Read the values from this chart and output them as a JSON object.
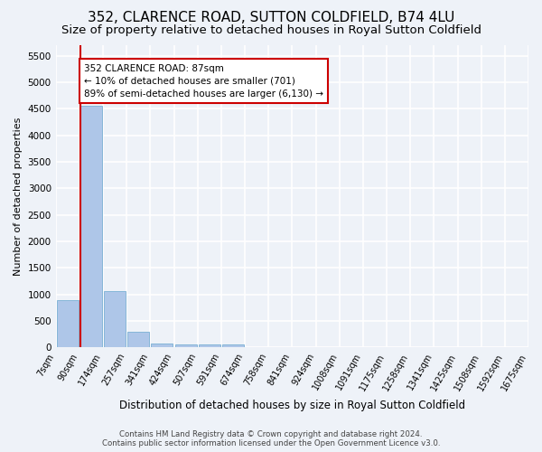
{
  "title": "352, CLARENCE ROAD, SUTTON COLDFIELD, B74 4LU",
  "subtitle": "Size of property relative to detached houses in Royal Sutton Coldfield",
  "xlabel": "Distribution of detached houses by size in Royal Sutton Coldfield",
  "ylabel": "Number of detached properties",
  "footer_line1": "Contains HM Land Registry data © Crown copyright and database right 2024.",
  "footer_line2": "Contains public sector information licensed under the Open Government Licence v3.0.",
  "tick_labels": [
    "7sqm",
    "90sqm",
    "174sqm",
    "257sqm",
    "341sqm",
    "424sqm",
    "507sqm",
    "591sqm",
    "674sqm",
    "758sqm",
    "841sqm",
    "924sqm",
    "1008sqm",
    "1091sqm",
    "1175sqm",
    "1258sqm",
    "1341sqm",
    "1425sqm",
    "1508sqm",
    "1592sqm",
    "1675sqm"
  ],
  "values": [
    900,
    4550,
    1060,
    300,
    75,
    65,
    65,
    60,
    0,
    0,
    0,
    0,
    0,
    0,
    0,
    0,
    0,
    0,
    0,
    0
  ],
  "bar_color": "#aec6e8",
  "bar_edge_color": "#7ab0d4",
  "property_line_color": "#cc0000",
  "property_line_x": 0.55,
  "annotation_text": "352 CLARENCE ROAD: 87sqm\n← 10% of detached houses are smaller (701)\n89% of semi-detached houses are larger (6,130) →",
  "annotation_box_facecolor": "#ffffff",
  "annotation_box_edgecolor": "#cc0000",
  "ylim": [
    0,
    5700
  ],
  "yticks": [
    0,
    500,
    1000,
    1500,
    2000,
    2500,
    3000,
    3500,
    4000,
    4500,
    5000,
    5500
  ],
  "background_color": "#eef2f8",
  "grid_color": "#ffffff",
  "title_fontsize": 11,
  "subtitle_fontsize": 9.5,
  "ylabel_fontsize": 8,
  "xlabel_fontsize": 8.5,
  "tick_fontsize": 7,
  "ytick_fontsize": 7.5,
  "footer_fontsize": 6.2
}
